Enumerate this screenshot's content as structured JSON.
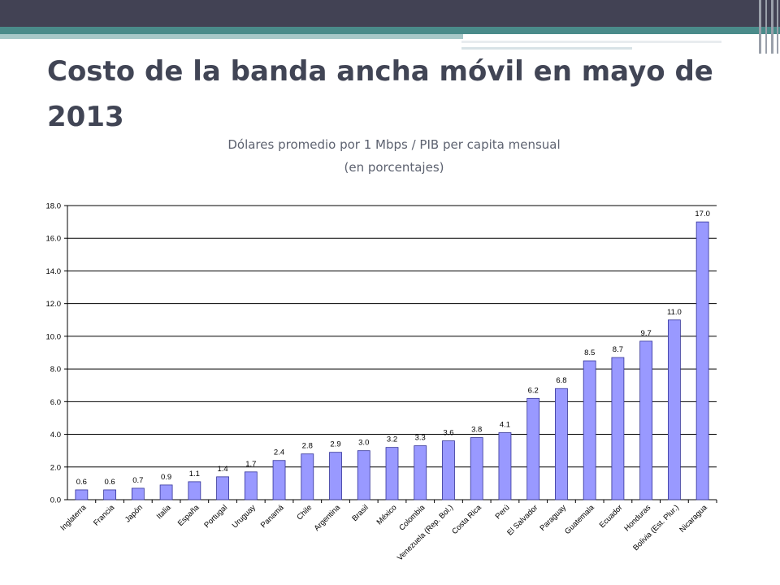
{
  "slide": {
    "title": "Costo de la banda ancha móvil en mayo de 2013",
    "subtitle_line1": "Dólares promedio por 1 Mbps / PIB per capita mensual",
    "subtitle_line2": "(en porcentajes)"
  },
  "colors": {
    "bar_fill": "#9999ff",
    "bar_stroke": "#333399",
    "title": "#414555",
    "header_dark": "#424254",
    "header_teal": "#4a8b8a"
  },
  "chart_data": {
    "type": "bar",
    "categories": [
      "Inglaterra",
      "Francia",
      "Japón",
      "Italia",
      "España",
      "Portugal",
      "Uruguay",
      "Panamá",
      "Chile",
      "Argentina",
      "Brasil",
      "México",
      "Colombia",
      "Venezuela (Rep. Bol.)",
      "Costa Rica",
      "Perú",
      "El Salvador",
      "Paraguay",
      "Guatemala",
      "Ecuador",
      "Honduras",
      "Bolivia (Est. Plur.)",
      "Nicaragua"
    ],
    "values": [
      0.6,
      0.6,
      0.7,
      0.9,
      1.1,
      1.4,
      1.7,
      2.4,
      2.8,
      2.9,
      3.0,
      3.2,
      3.3,
      3.6,
      3.8,
      4.1,
      6.2,
      6.8,
      8.5,
      8.7,
      9.7,
      11.0,
      17.0
    ],
    "data_labels": [
      "0.6",
      "0.6",
      "0.7",
      "0.9",
      "1.1",
      "1.4",
      "1.7",
      "2.4",
      "2.8",
      "2.9",
      "3.0",
      "3.2",
      "3.3",
      "3.6",
      "3.8",
      "4.1",
      "6.2",
      "6.8",
      "8.5",
      "8.7",
      "9.7",
      "11.0",
      "17.0"
    ],
    "ylim": [
      0,
      18
    ],
    "yticks": [
      "0.0",
      "2.0",
      "4.0",
      "6.0",
      "8.0",
      "10.0",
      "12.0",
      "14.0",
      "16.0",
      "18.0"
    ],
    "ytick_values": [
      0,
      2,
      4,
      6,
      8,
      10,
      12,
      14,
      16,
      18
    ],
    "grid": true,
    "legend": "none",
    "xlabel": "",
    "ylabel": ""
  }
}
